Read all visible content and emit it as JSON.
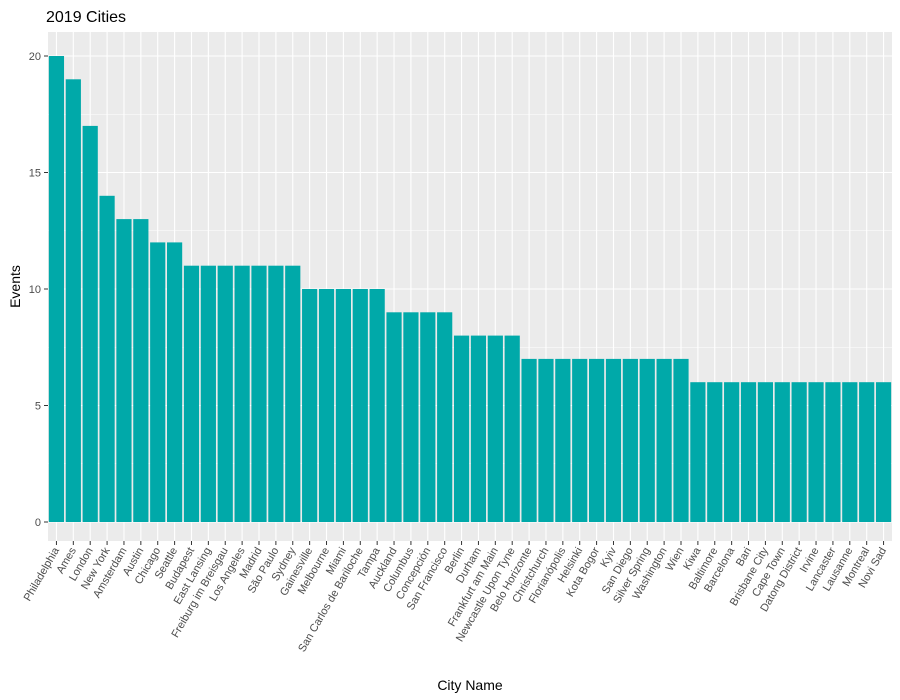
{
  "chart_data": {
    "type": "bar",
    "title": "2019 Cities",
    "xlabel": "City Name",
    "ylabel": "Events",
    "ylim": [
      0,
      21
    ],
    "yticks": [
      0,
      5,
      10,
      15,
      20
    ],
    "grid": true,
    "legend": "none",
    "colors": {
      "bar": "#00A9A9",
      "panel": "#EBEBEB",
      "grid": "#FFFFFF",
      "tick_text": "#4D4D4D"
    },
    "categories": [
      "Philadelphia",
      "Ames",
      "London",
      "New York",
      "Amsterdam",
      "Austin",
      "Chicago",
      "Seattle",
      "Budapest",
      "East Lansing",
      "Freiburg im Breisgau",
      "Los Angeles",
      "Madrid",
      "São Paulo",
      "Sydney",
      "Gainesville",
      "Melbourne",
      "Miami",
      "San Carlos de Bariloche",
      "Tampa",
      "Auckland",
      "Columbus",
      "Concepción",
      "San Francisco",
      "Berlin",
      "Durham",
      "Frankfurt am Main",
      "Newcastle Upon Tyne",
      "Belo Horizonte",
      "Christchurch",
      "Florianópolis",
      "Helsinki",
      "Kota Bogor",
      "Kyiv",
      "San Diego",
      "Silver Spring",
      "Washington",
      "Wien",
      "Kiwa",
      "Baltimore",
      "Barcelona",
      "Bari",
      "Brisbane City",
      "Cape Town",
      "Datong District",
      "Irvine",
      "Lancaster",
      "Lausanne",
      "Montreal",
      "Novi Sad"
    ],
    "values": [
      20,
      19,
      17,
      14,
      13,
      13,
      12,
      12,
      11,
      11,
      11,
      11,
      11,
      11,
      11,
      10,
      10,
      10,
      10,
      10,
      9,
      9,
      9,
      9,
      8,
      8,
      8,
      8,
      7,
      7,
      7,
      7,
      7,
      7,
      7,
      7,
      7,
      7,
      6,
      6,
      6,
      6,
      6,
      6,
      6,
      6,
      6,
      6,
      6,
      6
    ]
  }
}
